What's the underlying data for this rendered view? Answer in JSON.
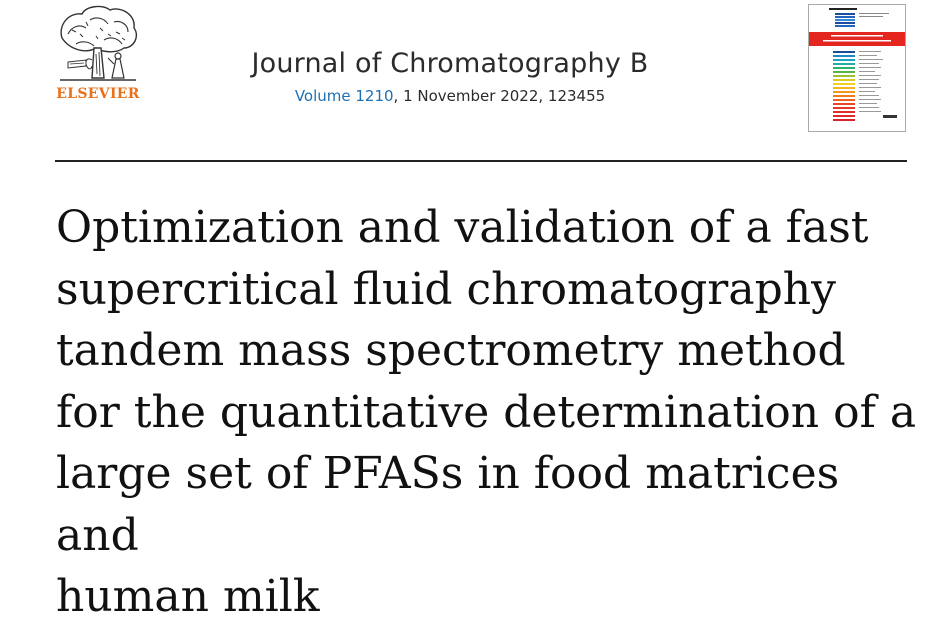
{
  "publisher": {
    "name": "ELSEVIER",
    "logo_icon": "elsevier-tree-icon"
  },
  "journal": {
    "name": "Journal of Chromatography B",
    "volume": "Volume 1210",
    "issue_rest": ", 1 November 2022, 123455"
  },
  "cover": {
    "icon": "journal-cover-thumbnail-icon"
  },
  "article": {
    "title_lines": [
      "Optimization and validation of a fast",
      "supercritical fluid chromatography",
      "tandem mass spectrometry method",
      "for the quantitative determination of a",
      "large set of PFASs in food matrices and",
      "human milk"
    ]
  }
}
